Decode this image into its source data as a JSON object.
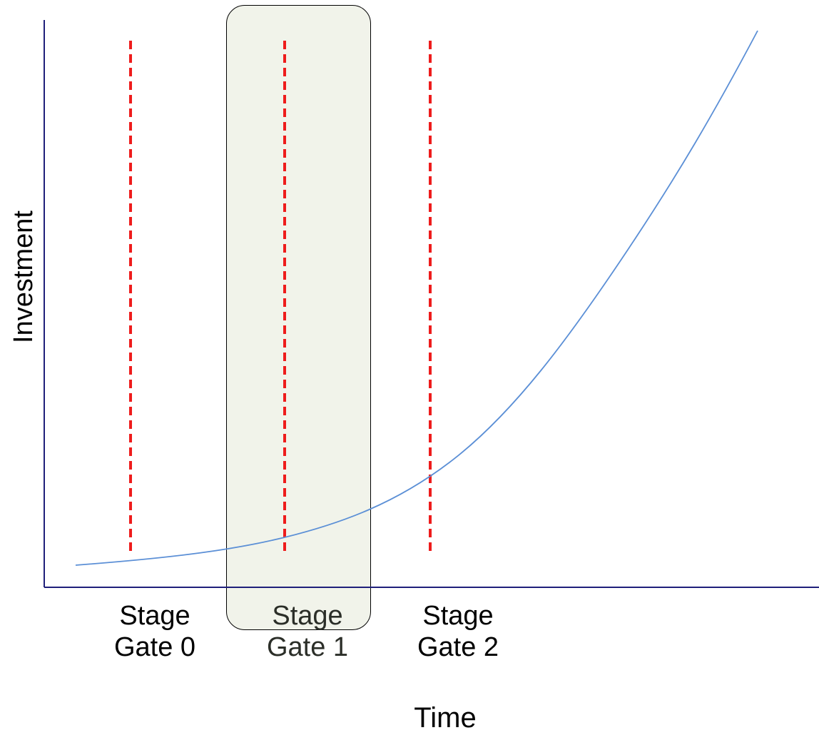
{
  "diagram": {
    "x_axis_label": "Time",
    "y_axis_label": "Investment",
    "gates": [
      {
        "line1": "Stage",
        "line2": "Gate 0",
        "highlighted": false
      },
      {
        "line1": "Stage",
        "line2": "Gate 1",
        "highlighted": true
      },
      {
        "line1": "Stage",
        "line2": "Gate 2",
        "highlighted": false
      }
    ],
    "colors": {
      "axis": "#1f1f7a",
      "curve": "#5b8fd6",
      "gate_line": "#ee1c1c",
      "highlight_fill": "#f1f3ea",
      "highlight_border": "#000000"
    },
    "icons": {
      "gate_marker": "dashed-vertical-line",
      "growth_curve": "s-curve"
    }
  }
}
